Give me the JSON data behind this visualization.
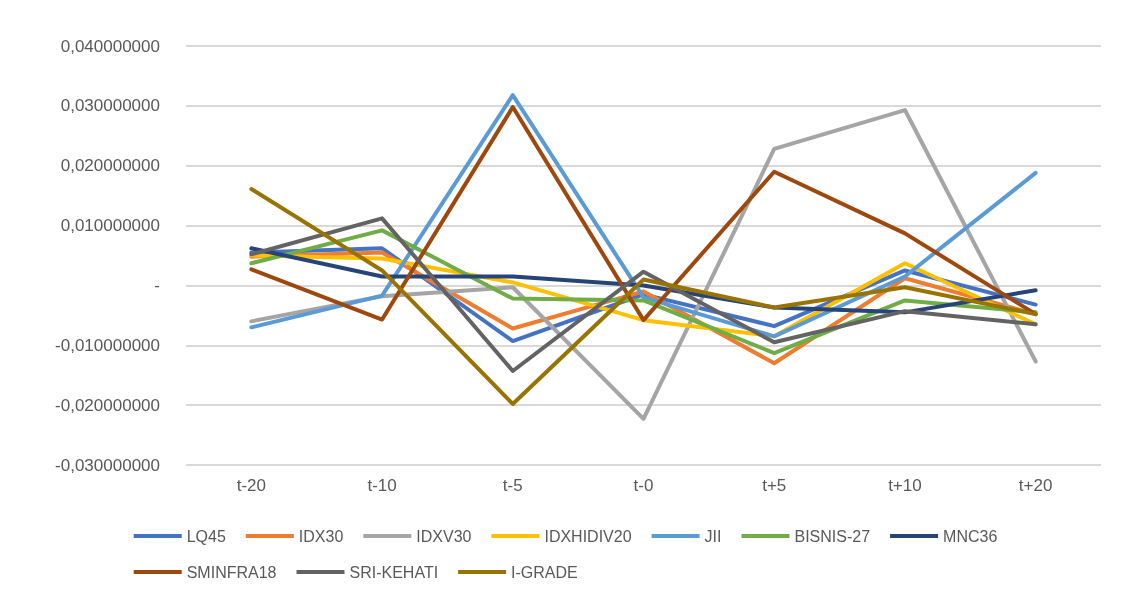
{
  "chart_data": {
    "type": "line",
    "categories": [
      "t-20",
      "t-10",
      "t-5",
      "t-0",
      "t+5",
      "t+10",
      "t+20"
    ],
    "series": [
      {
        "name": "LQ45",
        "color": "#4472c4",
        "values": [
          0.0055,
          0.0062,
          -0.0093,
          -0.0015,
          -0.0068,
          0.0025,
          -0.0032
        ]
      },
      {
        "name": "IDX30",
        "color": "#ed7d31",
        "values": [
          0.0048,
          0.0055,
          -0.0072,
          -0.001,
          -0.013,
          0.0012,
          -0.0048
        ]
      },
      {
        "name": "IDXV30",
        "color": "#a5a5a5",
        "values": [
          -0.006,
          -0.0018,
          -0.0003,
          -0.0223,
          0.0228,
          0.0293,
          -0.0127
        ]
      },
      {
        "name": "IDXHIDIV20",
        "color": "#ffc000",
        "values": [
          0.005,
          0.0045,
          0.0005,
          -0.0058,
          -0.0085,
          0.0037,
          -0.0065
        ]
      },
      {
        "name": "JII",
        "color": "#5b9bd5",
        "values": [
          -0.007,
          -0.0017,
          0.0318,
          -0.002,
          -0.0085,
          0.0015,
          0.0188
        ]
      },
      {
        "name": "BISNIS-27",
        "color": "#70ad47",
        "values": [
          0.0037,
          0.0092,
          -0.0022,
          -0.0025,
          -0.0113,
          -0.0025,
          -0.0045
        ]
      },
      {
        "name": "MNC36",
        "color": "#264478",
        "values": [
          0.0062,
          0.0015,
          0.0015,
          0.0,
          -0.0037,
          -0.0045,
          -0.0008
        ]
      },
      {
        "name": "SMINFRA18",
        "color": "#9e480e",
        "values": [
          0.0027,
          -0.0057,
          0.0298,
          -0.0058,
          0.019,
          0.0087,
          -0.0048
        ]
      },
      {
        "name": "SRI-KEHATI",
        "color": "#636363",
        "values": [
          0.0052,
          0.0112,
          -0.0143,
          0.0023,
          -0.0095,
          -0.0043,
          -0.0065
        ]
      },
      {
        "name": "I-GRADE",
        "color": "#997300",
        "values": [
          0.0161,
          0.0025,
          -0.0198,
          0.001,
          -0.0037,
          -0.0003,
          -0.0048
        ]
      }
    ],
    "ylim": [
      -0.03,
      0.04
    ],
    "yticks": [
      {
        "value": -0.03,
        "label": "-0,030000000"
      },
      {
        "value": -0.02,
        "label": "-0,020000000"
      },
      {
        "value": -0.01,
        "label": "-0,010000000"
      },
      {
        "value": 0,
        "label": "-"
      },
      {
        "value": 0.01,
        "label": "0,010000000"
      },
      {
        "value": 0.02,
        "label": "0,020000000"
      },
      {
        "value": 0.03,
        "label": "0,030000000"
      },
      {
        "value": 0.04,
        "label": "0,040000000"
      }
    ],
    "grid": "y",
    "legend": "bottom",
    "marker": "none",
    "line_style": "solid"
  }
}
